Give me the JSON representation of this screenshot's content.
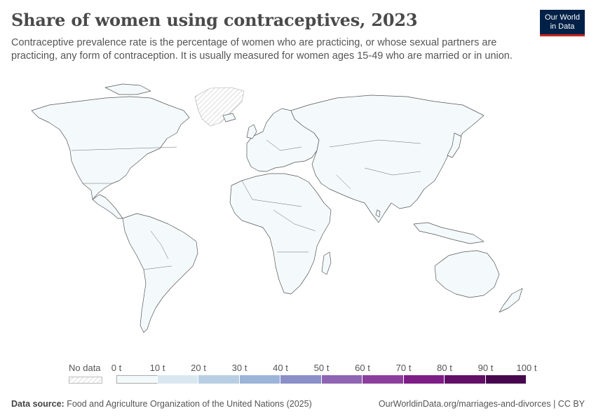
{
  "header": {
    "title": "Share of women using contraceptives, 2023",
    "subtitle": "Contraceptive prevalence rate is the percentage of women who are practicing, or whose sexual partners are practicing, any form of contraception. It is usually measured for women ages 15-49 who are married or in union.",
    "logo_line1": "Our World",
    "logo_line2": "in Data"
  },
  "legend": {
    "no_data_label": "No data",
    "ticks": [
      "0 t",
      "10 t",
      "20 t",
      "30 t",
      "40 t",
      "50 t",
      "60 t",
      "70 t",
      "80 t",
      "90 t",
      "100 t"
    ],
    "colors": [
      "#f4fafb",
      "#d9e8f0",
      "#b8cfe3",
      "#9db4d9",
      "#8a8fc8",
      "#8f64b2",
      "#8c3e9d",
      "#7d1d86",
      "#621067",
      "#47074d"
    ]
  },
  "footer": {
    "source_label": "Data source:",
    "source_text": "Food and Agriculture Organization of the United Nations (2025)",
    "right_text": "OurWorldinData.org/marriages-and-divorces | CC BY"
  },
  "map": {
    "land_color": "#f4fafb",
    "border_color": "#555555",
    "no_data_region": "Greenland"
  }
}
